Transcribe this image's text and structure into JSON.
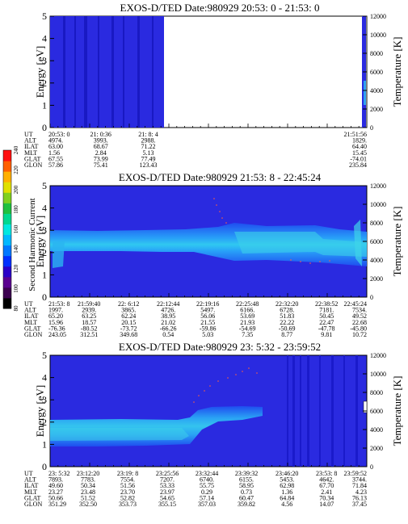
{
  "colorbar": {
    "label": "Second Harmonic Current",
    "ticks": [
      "80",
      "100",
      "120",
      "140",
      "160",
      "180",
      "200",
      "220",
      "240"
    ],
    "colors": [
      "#000000",
      "#3c0050",
      "#5a0090",
      "#2a00c8",
      "#0030ff",
      "#0078ff",
      "#00b8ff",
      "#00e8e0",
      "#00d890",
      "#20c040",
      "#80d020",
      "#e0e000",
      "#ffb000",
      "#ff6000",
      "#ff1010"
    ]
  },
  "chart_data": [
    {
      "type": "heatmap",
      "title": "EXOS-D/TED   Date:980929  20:53: 0 - 21:53: 0",
      "ylabel": "Energy [eV]",
      "ylim": [
        0,
        5
      ],
      "yticks": [
        "0",
        "1",
        "2",
        "3",
        "4",
        "5"
      ],
      "y2label": "Temperature [K]",
      "y2lim": [
        0,
        12000
      ],
      "y2ticks": [
        "0",
        "2000",
        "4000",
        "6000",
        "8000",
        "10000",
        "12000"
      ],
      "orbit_table": {
        "row_labels": [
          "UT",
          "ALT",
          "ILAT",
          "MLT",
          "GLAT",
          "GLON"
        ],
        "columns": [
          {
            "pos": 0.0,
            "values": [
              "20:53: 0",
              "4974.",
              "63.00",
              "1.56",
              "67.55",
              "57.86"
            ]
          },
          {
            "pos": 0.16,
            "values": [
              "21: 0:36",
              "3993.",
              "68.67",
              "2.84",
              "73.99",
              "75.41"
            ]
          },
          {
            "pos": 0.31,
            "values": [
              "21: 8: 4",
              "2988.",
              "71.22",
              "5.13",
              "77.49",
              "123.43"
            ]
          },
          {
            "pos": 1.0,
            "values": [
              "21:51:56",
              "1829.",
              "64.40",
              "15.45",
              "-74.01",
              "235.84"
            ]
          }
        ]
      }
    },
    {
      "type": "heatmap",
      "title": "EXOS-D/TED   Date:980929  21:53: 8 - 22:45:24",
      "ylabel": "Energy [eV]",
      "ylim": [
        0,
        5
      ],
      "yticks": [
        "0",
        "1",
        "2",
        "3",
        "4",
        "5"
      ],
      "y2label": "Temperature [K]",
      "y2lim": [
        0,
        12000
      ],
      "y2ticks": [
        "0",
        "2000",
        "4000",
        "6000",
        "8000",
        "10000",
        "12000"
      ],
      "orbit_table": {
        "row_labels": [
          "UT",
          "ALT",
          "ILAT",
          "MLT",
          "GLAT",
          "GLON"
        ],
        "columns": [
          {
            "pos": 0.0,
            "values": [
              "21:53: 8",
              "1997.",
              "65.20",
              "15.96",
              "-76.36",
              "243.05"
            ]
          },
          {
            "pos": 0.123,
            "values": [
              "21:59:40",
              "2939.",
              "63.25",
              "18.57",
              "-80.52",
              "312.51"
            ]
          },
          {
            "pos": 0.248,
            "values": [
              "22: 6:12",
              "3865.",
              "62.24",
              "20.15",
              "-73.72",
              "349.68"
            ]
          },
          {
            "pos": 0.373,
            "values": [
              "22:12:44",
              "4726.",
              "38.95",
              "21.02",
              "-66.26",
              "0.54"
            ]
          },
          {
            "pos": 0.498,
            "values": [
              "22:19:16",
              "5497.",
              "56.06",
              "21.55",
              "-59.86",
              "5.03"
            ]
          },
          {
            "pos": 0.623,
            "values": [
              "22:25:48",
              "6166.",
              "53.69",
              "21.93",
              "-54.69",
              "7.35"
            ]
          },
          {
            "pos": 0.748,
            "values": [
              "22:32:20",
              "6728.",
              "51.83",
              "22.22",
              "-50.69",
              "8.77"
            ]
          },
          {
            "pos": 0.873,
            "values": [
              "22:38:52",
              "7181.",
              "50.45",
              "22.47",
              "-47.78",
              "9.81"
            ]
          },
          {
            "pos": 1.0,
            "values": [
              "22:45:24",
              "7534.",
              "49.52",
              "22.68",
              "-45.80",
              "10.72"
            ]
          }
        ]
      }
    },
    {
      "type": "heatmap",
      "title": "EXOS-D/TED   Date:980929  23: 5:32 - 23:59:52",
      "ylabel": "Energy [eV]",
      "ylim": [
        0,
        5
      ],
      "yticks": [
        "0",
        "1",
        "2",
        "3",
        "4",
        "5"
      ],
      "y2label": "Temperature [K]",
      "y2lim": [
        0,
        12000
      ],
      "y2ticks": [
        "0",
        "2000",
        "4000",
        "6000",
        "8000",
        "10000",
        "12000"
      ],
      "orbit_table": {
        "row_labels": [
          "UT",
          "ALT",
          "ILAT",
          "MLT",
          "GLAT",
          "GLON"
        ],
        "columns": [
          {
            "pos": 0.0,
            "values": [
              "23: 5:32",
              "7893.",
              "49.60",
              "23.27",
              "50.66",
              "351.29"
            ]
          },
          {
            "pos": 0.12,
            "values": [
              "23:12:20",
              "7783.",
              "50.34",
              "23.48",
              "51.52",
              "352.50"
            ]
          },
          {
            "pos": 0.245,
            "values": [
              "23:19: 8",
              "7554.",
              "51.56",
              "23.70",
              "52.82",
              "353.73"
            ]
          },
          {
            "pos": 0.37,
            "values": [
              "23:25:56",
              "7207.",
              "53.33",
              "23.97",
              "54.65",
              "355.15"
            ]
          },
          {
            "pos": 0.495,
            "values": [
              "23:32:44",
              "6740.",
              "55.75",
              "0.29",
              "57.14",
              "357.03"
            ]
          },
          {
            "pos": 0.62,
            "values": [
              "23:39:32",
              "6155.",
              "58.95",
              "0.73",
              "60.47",
              "359.82"
            ]
          },
          {
            "pos": 0.748,
            "values": [
              "23:46:20",
              "5453.",
              "62.98",
              "1.36",
              "64.84",
              "4.56"
            ]
          },
          {
            "pos": 0.873,
            "values": [
              "23:53: 8",
              "4642.",
              "67.70",
              "2.41",
              "70.34",
              "14.07"
            ]
          },
          {
            "pos": 1.0,
            "values": [
              "23:59:52",
              "3744.",
              "71.84",
              "4.23",
              "76.13",
              "37.45"
            ]
          }
        ]
      }
    }
  ]
}
